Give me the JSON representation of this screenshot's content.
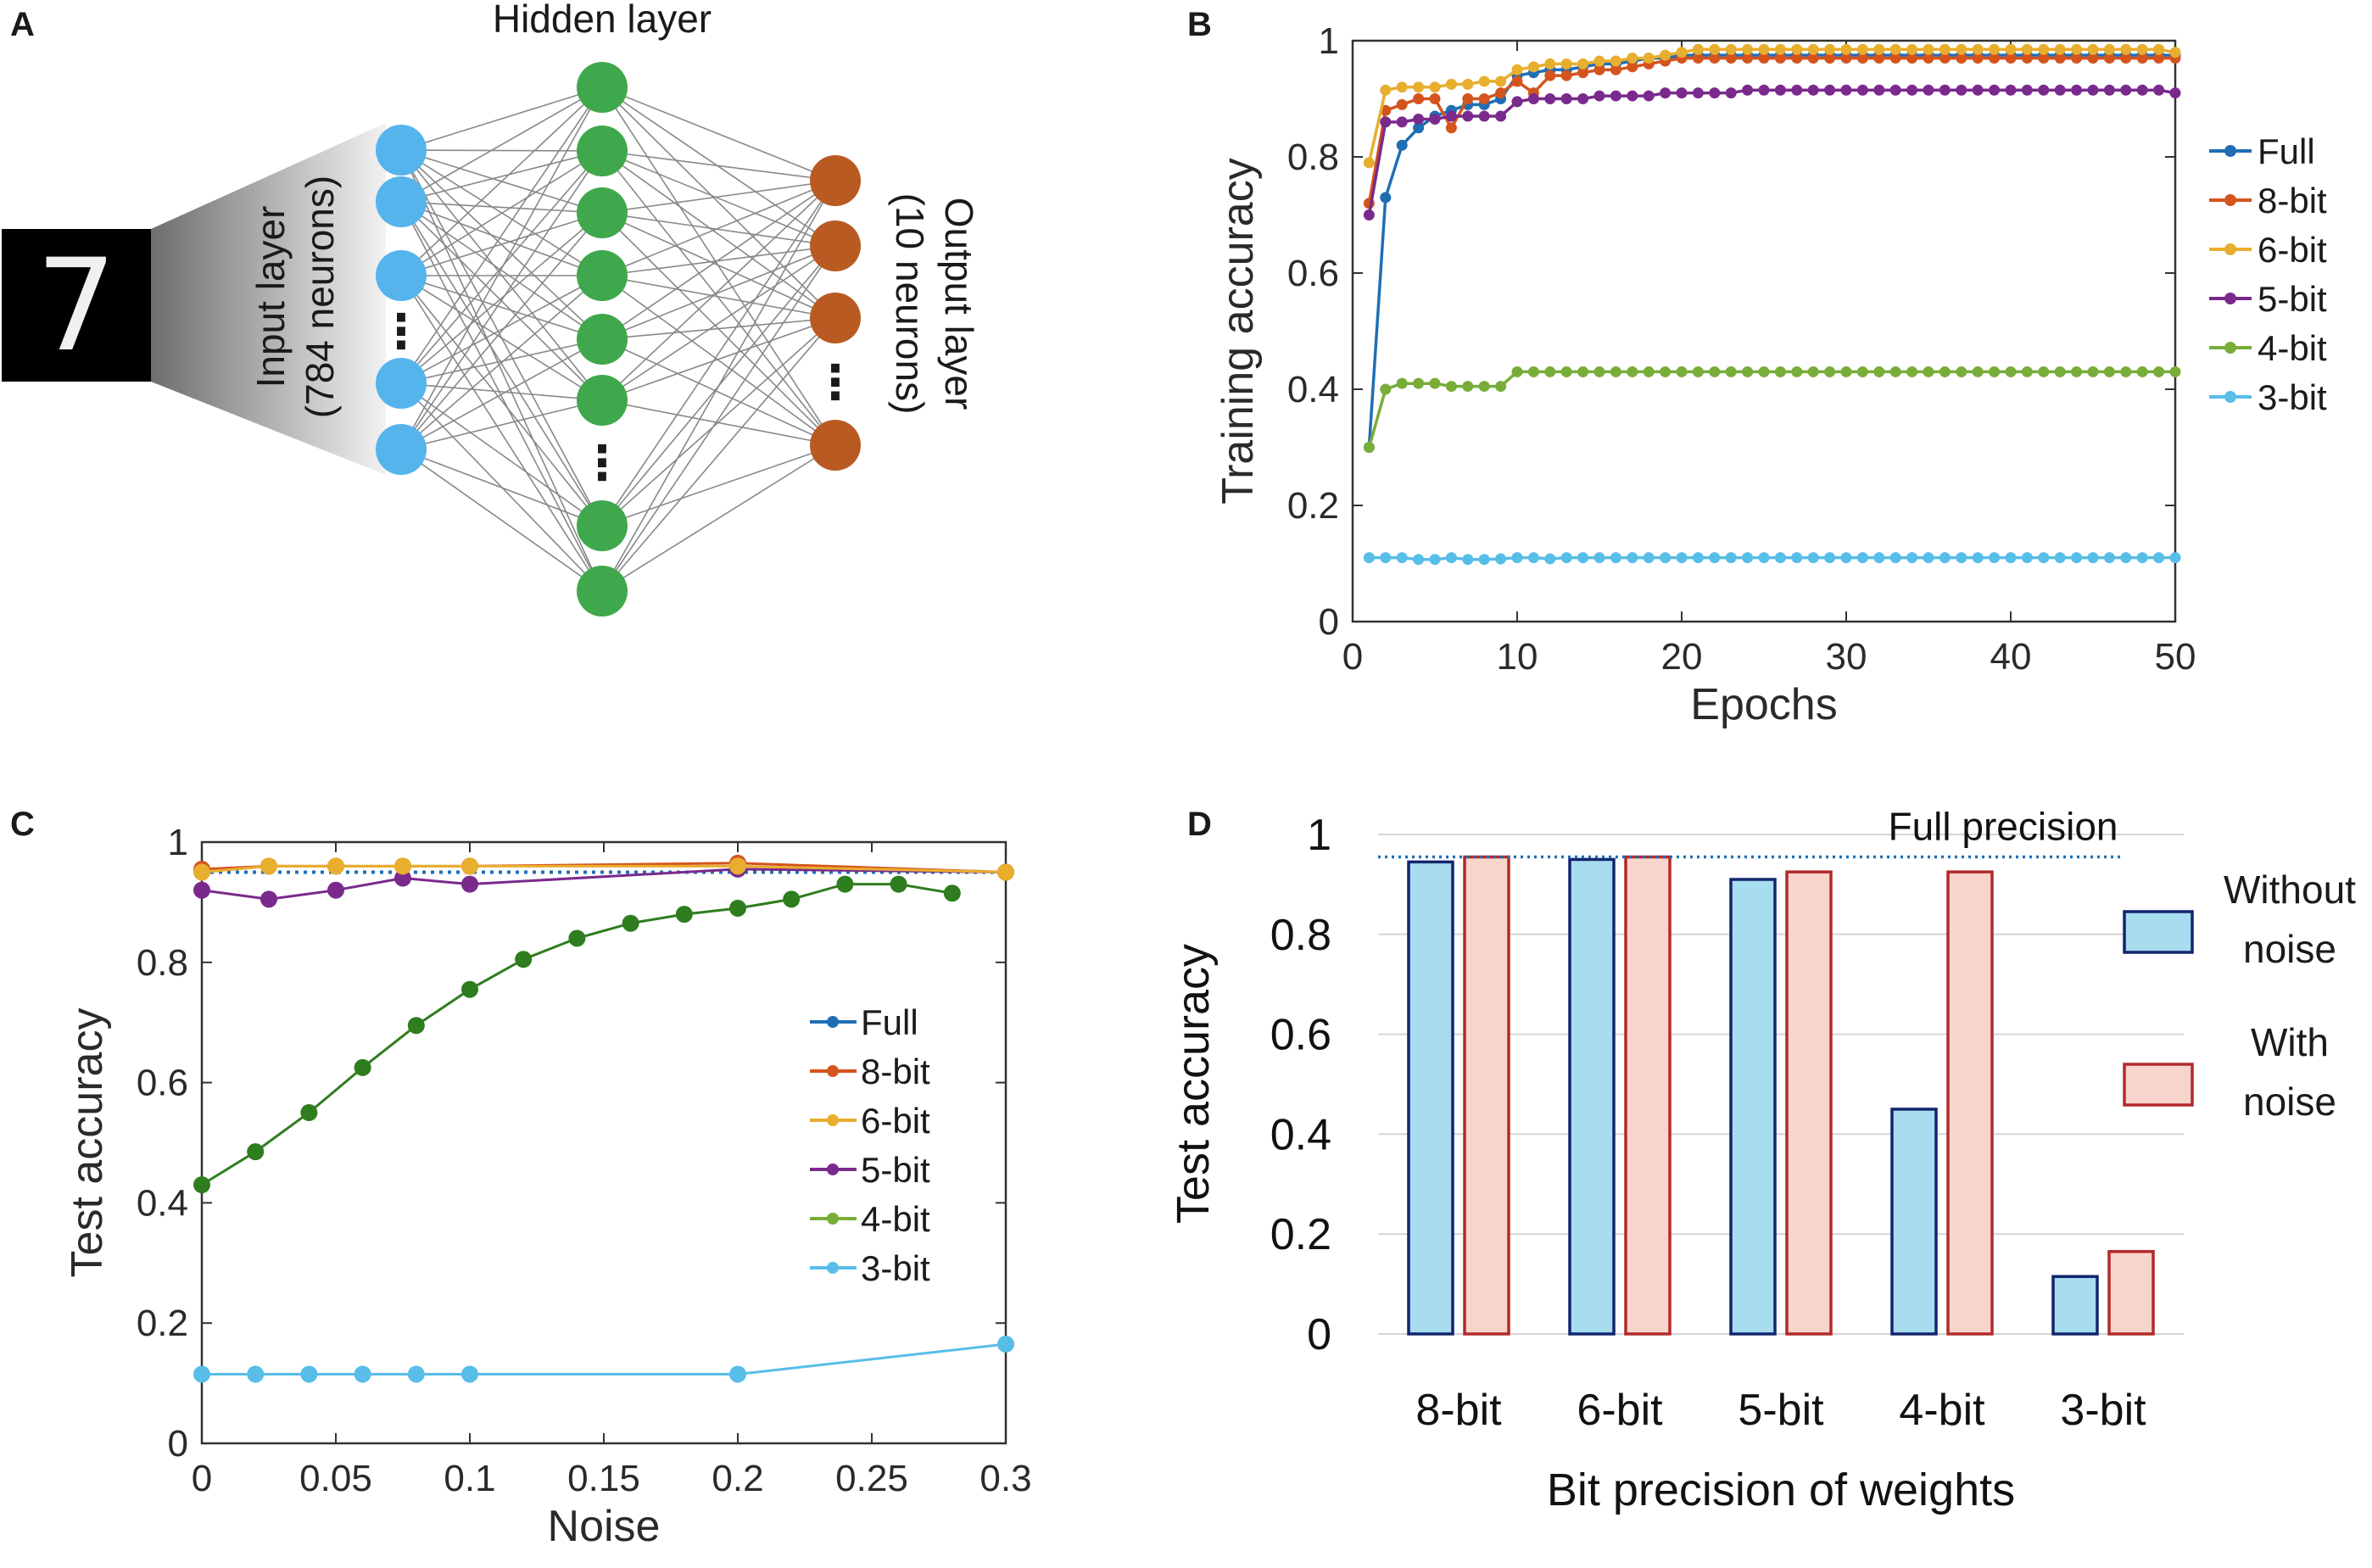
{
  "panels": {
    "A": {
      "letter": "A",
      "hidden_title": "Hidden layer",
      "input_label_1": "Input layer",
      "input_label_2": "(784 neurons)",
      "output_label_1": "Output layer",
      "output_label_2": "(10 neurons)",
      "digit": "7",
      "ellipsis": "⋮",
      "colors": {
        "input": "#55b4ec",
        "hidden": "#3fa84c",
        "output": "#b95a23",
        "edges": "#888888"
      }
    },
    "B": {
      "letter": "B"
    },
    "C": {
      "letter": "C"
    },
    "D": {
      "letter": "D"
    }
  },
  "chart_data": [
    {
      "panel": "B",
      "type": "line",
      "xlabel": "Epochs",
      "ylabel": "Training accuracy",
      "xlim": [
        0,
        50
      ],
      "ylim": [
        0,
        1
      ],
      "xticks": [
        0,
        10,
        20,
        30,
        40,
        50
      ],
      "yticks": [
        0,
        0.2,
        0.4,
        0.6,
        0.8,
        1
      ],
      "ytick_labels": [
        "0",
        "0.2",
        "0.4",
        "0.6",
        "0.8",
        "1"
      ],
      "legend_position": "right",
      "x": [
        1,
        2,
        3,
        4,
        5,
        6,
        7,
        8,
        9,
        10,
        11,
        12,
        13,
        14,
        15,
        16,
        17,
        18,
        19,
        20,
        21,
        22,
        23,
        24,
        25,
        26,
        27,
        28,
        29,
        30,
        31,
        32,
        33,
        34,
        35,
        36,
        37,
        38,
        39,
        40,
        41,
        42,
        43,
        44,
        45,
        46,
        47,
        48,
        49,
        50
      ],
      "series": [
        {
          "name": "Full",
          "color": "#1f6eb4",
          "values": [
            0.3,
            0.73,
            0.82,
            0.85,
            0.87,
            0.88,
            0.89,
            0.89,
            0.9,
            0.94,
            0.945,
            0.95,
            0.95,
            0.955,
            0.96,
            0.96,
            0.965,
            0.97,
            0.97,
            0.975,
            0.975,
            0.975,
            0.975,
            0.975,
            0.975,
            0.975,
            0.975,
            0.975,
            0.975,
            0.975,
            0.975,
            0.975,
            0.975,
            0.975,
            0.975,
            0.975,
            0.975,
            0.975,
            0.975,
            0.975,
            0.975,
            0.975,
            0.975,
            0.975,
            0.975,
            0.975,
            0.975,
            0.975,
            0.975,
            0.975
          ]
        },
        {
          "name": "8-bit",
          "color": "#d4541e",
          "values": [
            0.72,
            0.88,
            0.89,
            0.9,
            0.9,
            0.85,
            0.9,
            0.9,
            0.91,
            0.93,
            0.91,
            0.94,
            0.94,
            0.945,
            0.95,
            0.95,
            0.955,
            0.96,
            0.965,
            0.97,
            0.97,
            0.97,
            0.97,
            0.97,
            0.97,
            0.97,
            0.97,
            0.97,
            0.97,
            0.97,
            0.97,
            0.97,
            0.97,
            0.97,
            0.97,
            0.97,
            0.97,
            0.97,
            0.97,
            0.97,
            0.97,
            0.97,
            0.97,
            0.97,
            0.97,
            0.97,
            0.97,
            0.97,
            0.97,
            0.97
          ]
        },
        {
          "name": "6-bit",
          "color": "#e8ae2e",
          "values": [
            0.79,
            0.915,
            0.92,
            0.92,
            0.92,
            0.925,
            0.925,
            0.93,
            0.93,
            0.95,
            0.955,
            0.96,
            0.96,
            0.96,
            0.965,
            0.965,
            0.97,
            0.97,
            0.975,
            0.98,
            0.985,
            0.985,
            0.985,
            0.985,
            0.985,
            0.985,
            0.985,
            0.985,
            0.985,
            0.985,
            0.985,
            0.985,
            0.985,
            0.985,
            0.985,
            0.985,
            0.985,
            0.985,
            0.985,
            0.985,
            0.985,
            0.985,
            0.985,
            0.985,
            0.985,
            0.985,
            0.985,
            0.985,
            0.985,
            0.98
          ]
        },
        {
          "name": "5-bit",
          "color": "#7a2a8c",
          "values": [
            0.7,
            0.86,
            0.86,
            0.865,
            0.865,
            0.87,
            0.87,
            0.87,
            0.87,
            0.895,
            0.9,
            0.9,
            0.9,
            0.9,
            0.905,
            0.905,
            0.905,
            0.905,
            0.91,
            0.91,
            0.91,
            0.91,
            0.91,
            0.915,
            0.915,
            0.915,
            0.915,
            0.915,
            0.915,
            0.915,
            0.915,
            0.915,
            0.915,
            0.915,
            0.915,
            0.915,
            0.915,
            0.915,
            0.915,
            0.915,
            0.915,
            0.915,
            0.915,
            0.915,
            0.915,
            0.915,
            0.915,
            0.915,
            0.915,
            0.91
          ]
        },
        {
          "name": "4-bit",
          "color": "#78ad3a",
          "values": [
            0.3,
            0.4,
            0.41,
            0.41,
            0.41,
            0.405,
            0.405,
            0.405,
            0.405,
            0.43,
            0.43,
            0.43,
            0.43,
            0.43,
            0.43,
            0.43,
            0.43,
            0.43,
            0.43,
            0.43,
            0.43,
            0.43,
            0.43,
            0.43,
            0.43,
            0.43,
            0.43,
            0.43,
            0.43,
            0.43,
            0.43,
            0.43,
            0.43,
            0.43,
            0.43,
            0.43,
            0.43,
            0.43,
            0.43,
            0.43,
            0.43,
            0.43,
            0.43,
            0.43,
            0.43,
            0.43,
            0.43,
            0.43,
            0.43,
            0.43
          ]
        },
        {
          "name": "3-bit",
          "color": "#58bde8",
          "values": [
            0.11,
            0.11,
            0.11,
            0.107,
            0.107,
            0.11,
            0.107,
            0.107,
            0.108,
            0.11,
            0.11,
            0.108,
            0.11,
            0.11,
            0.11,
            0.11,
            0.11,
            0.11,
            0.11,
            0.11,
            0.11,
            0.11,
            0.11,
            0.11,
            0.11,
            0.11,
            0.11,
            0.11,
            0.11,
            0.11,
            0.11,
            0.11,
            0.11,
            0.11,
            0.11,
            0.11,
            0.11,
            0.11,
            0.11,
            0.11,
            0.11,
            0.11,
            0.11,
            0.11,
            0.11,
            0.11,
            0.11,
            0.11,
            0.11,
            0.11
          ]
        }
      ]
    },
    {
      "panel": "C",
      "type": "line",
      "xlabel": "Noise",
      "ylabel": "Test accuracy",
      "xlim": [
        0,
        0.3
      ],
      "ylim": [
        0,
        1
      ],
      "xticks": [
        0,
        0.05,
        0.1,
        0.15,
        0.2,
        0.25,
        0.3
      ],
      "xtick_labels": [
        "0",
        "0.05",
        "0.1",
        "0.15",
        "0.2",
        "0.25",
        "0.3"
      ],
      "yticks": [
        0,
        0.2,
        0.4,
        0.6,
        0.8,
        1
      ],
      "ytick_labels": [
        "0",
        "0.2",
        "0.4",
        "0.6",
        "0.8",
        "1"
      ],
      "legend_position": "center-right",
      "series": [
        {
          "name": "Full",
          "color": "#1f6eb4",
          "style": "dotted",
          "x": [
            0,
            0.3
          ],
          "y": [
            0.95,
            0.95
          ],
          "markers": false
        },
        {
          "name": "8-bit",
          "color": "#d4541e",
          "x": [
            0,
            0.025,
            0.05,
            0.075,
            0.1,
            0.2,
            0.3
          ],
          "y": [
            0.955,
            0.96,
            0.96,
            0.96,
            0.96,
            0.965,
            0.95
          ]
        },
        {
          "name": "6-bit",
          "color": "#e8ae2e",
          "x": [
            0,
            0.025,
            0.05,
            0.075,
            0.1,
            0.2,
            0.3
          ],
          "y": [
            0.95,
            0.96,
            0.96,
            0.96,
            0.96,
            0.96,
            0.95
          ]
        },
        {
          "name": "5-bit",
          "color": "#7a2a8c",
          "x": [
            0,
            0.025,
            0.05,
            0.075,
            0.1,
            0.2,
            0.3
          ],
          "y": [
            0.92,
            0.905,
            0.92,
            0.94,
            0.93,
            0.955,
            0.95
          ]
        },
        {
          "name": "4-bit",
          "color": "#2e7d1e",
          "legend_color": "#78ad3a",
          "x": [
            0,
            0.02,
            0.04,
            0.06,
            0.08,
            0.1,
            0.12,
            0.14,
            0.16,
            0.18,
            0.2,
            0.22,
            0.24,
            0.26,
            0.28
          ],
          "y": [
            0.43,
            0.485,
            0.55,
            0.625,
            0.695,
            0.755,
            0.805,
            0.84,
            0.865,
            0.88,
            0.89,
            0.905,
            0.93,
            0.93,
            0.915
          ]
        },
        {
          "name": "3-bit",
          "color": "#58bde8",
          "x": [
            0,
            0.02,
            0.04,
            0.06,
            0.08,
            0.1,
            0.2,
            0.3
          ],
          "y": [
            0.115,
            0.115,
            0.115,
            0.115,
            0.115,
            0.115,
            0.115,
            0.165
          ]
        }
      ]
    },
    {
      "panel": "D",
      "type": "bar",
      "xlabel": "Bit precision of weights",
      "ylabel": "Test accuracy",
      "ylim": [
        0,
        1
      ],
      "yticks": [
        0,
        0.2,
        0.4,
        0.6,
        0.8,
        1
      ],
      "ytick_labels": [
        "0",
        "0.2",
        "0.4",
        "0.6",
        "0.8",
        "1"
      ],
      "categories": [
        "8-bit",
        "6-bit",
        "5-bit",
        "4-bit",
        "3-bit"
      ],
      "reference_line": {
        "label": "Full precision",
        "value": 0.955,
        "color": "#1f6eb4",
        "style": "dotted"
      },
      "legend_position": "right",
      "series": [
        {
          "name": "Without noise",
          "name_line1": "Without",
          "name_line2": "noise",
          "fill": "#a8dcef",
          "stroke": "#12256e",
          "values": [
            0.945,
            0.95,
            0.91,
            0.45,
            0.115
          ]
        },
        {
          "name": "With noise",
          "name_line1": "With",
          "name_line2": "noise",
          "fill": "#f8d5cc",
          "stroke": "#b22a2a",
          "values": [
            0.955,
            0.955,
            0.925,
            0.925,
            0.165
          ]
        }
      ]
    }
  ]
}
